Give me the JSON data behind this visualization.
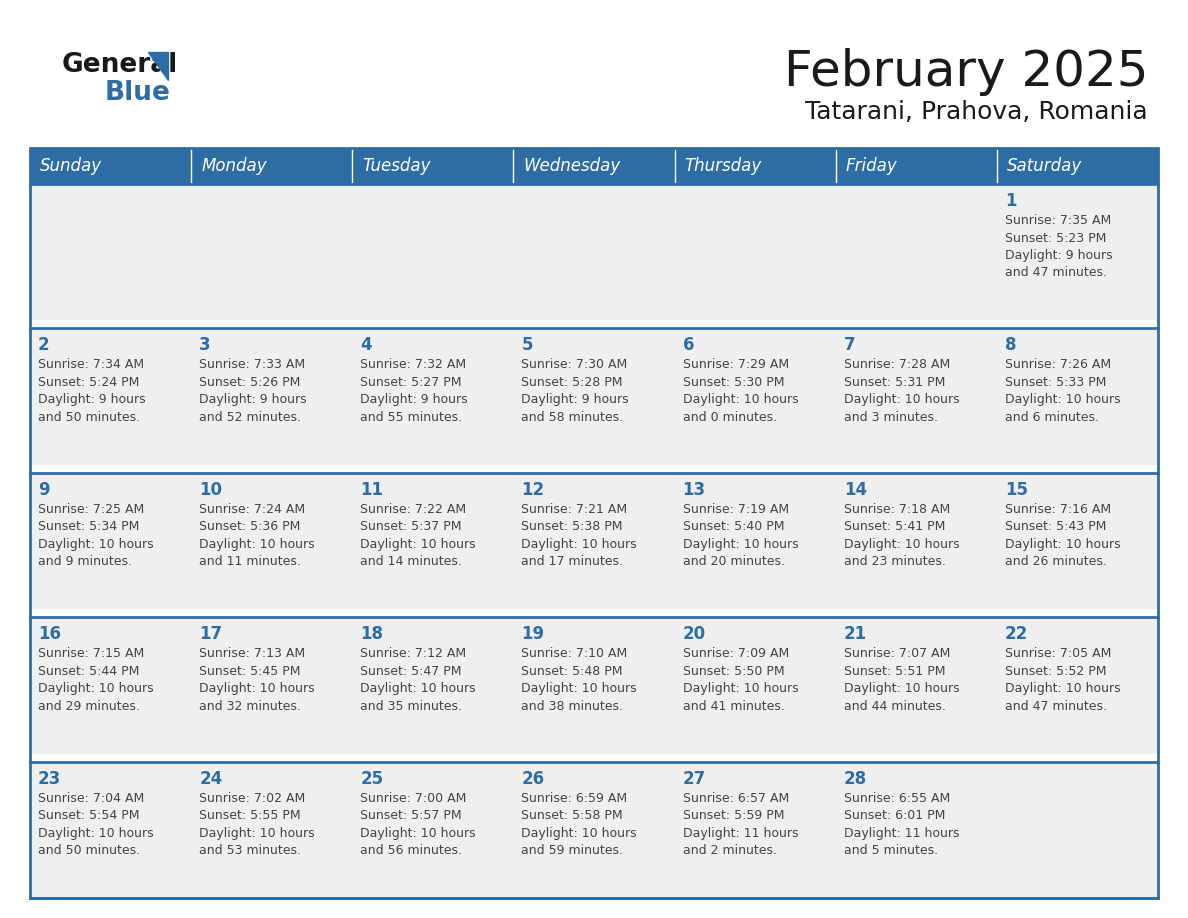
{
  "title": "February 2025",
  "subtitle": "Tatarani, Prahova, Romania",
  "days_of_week": [
    "Sunday",
    "Monday",
    "Tuesday",
    "Wednesday",
    "Thursday",
    "Friday",
    "Saturday"
  ],
  "header_bg": "#2E6DA4",
  "header_text": "#FFFFFF",
  "cell_bg": "#EFEFEF",
  "cell_bg_white": "#FFFFFF",
  "row_separator_color": "#2E6DA4",
  "day_number_color": "#2E6DA4",
  "cell_text_color": "#444444",
  "title_color": "#1a1a1a",
  "subtitle_color": "#1a1a1a",
  "logo_general_color": "#1a1a1a",
  "logo_blue_color": "#2E6DA4",
  "logo_triangle_color": "#2E6DA4",
  "calendar_data": [
    [
      {
        "day": null,
        "info": null
      },
      {
        "day": null,
        "info": null
      },
      {
        "day": null,
        "info": null
      },
      {
        "day": null,
        "info": null
      },
      {
        "day": null,
        "info": null
      },
      {
        "day": null,
        "info": null
      },
      {
        "day": 1,
        "info": "Sunrise: 7:35 AM\nSunset: 5:23 PM\nDaylight: 9 hours\nand 47 minutes."
      }
    ],
    [
      {
        "day": 2,
        "info": "Sunrise: 7:34 AM\nSunset: 5:24 PM\nDaylight: 9 hours\nand 50 minutes."
      },
      {
        "day": 3,
        "info": "Sunrise: 7:33 AM\nSunset: 5:26 PM\nDaylight: 9 hours\nand 52 minutes."
      },
      {
        "day": 4,
        "info": "Sunrise: 7:32 AM\nSunset: 5:27 PM\nDaylight: 9 hours\nand 55 minutes."
      },
      {
        "day": 5,
        "info": "Sunrise: 7:30 AM\nSunset: 5:28 PM\nDaylight: 9 hours\nand 58 minutes."
      },
      {
        "day": 6,
        "info": "Sunrise: 7:29 AM\nSunset: 5:30 PM\nDaylight: 10 hours\nand 0 minutes."
      },
      {
        "day": 7,
        "info": "Sunrise: 7:28 AM\nSunset: 5:31 PM\nDaylight: 10 hours\nand 3 minutes."
      },
      {
        "day": 8,
        "info": "Sunrise: 7:26 AM\nSunset: 5:33 PM\nDaylight: 10 hours\nand 6 minutes."
      }
    ],
    [
      {
        "day": 9,
        "info": "Sunrise: 7:25 AM\nSunset: 5:34 PM\nDaylight: 10 hours\nand 9 minutes."
      },
      {
        "day": 10,
        "info": "Sunrise: 7:24 AM\nSunset: 5:36 PM\nDaylight: 10 hours\nand 11 minutes."
      },
      {
        "day": 11,
        "info": "Sunrise: 7:22 AM\nSunset: 5:37 PM\nDaylight: 10 hours\nand 14 minutes."
      },
      {
        "day": 12,
        "info": "Sunrise: 7:21 AM\nSunset: 5:38 PM\nDaylight: 10 hours\nand 17 minutes."
      },
      {
        "day": 13,
        "info": "Sunrise: 7:19 AM\nSunset: 5:40 PM\nDaylight: 10 hours\nand 20 minutes."
      },
      {
        "day": 14,
        "info": "Sunrise: 7:18 AM\nSunset: 5:41 PM\nDaylight: 10 hours\nand 23 minutes."
      },
      {
        "day": 15,
        "info": "Sunrise: 7:16 AM\nSunset: 5:43 PM\nDaylight: 10 hours\nand 26 minutes."
      }
    ],
    [
      {
        "day": 16,
        "info": "Sunrise: 7:15 AM\nSunset: 5:44 PM\nDaylight: 10 hours\nand 29 minutes."
      },
      {
        "day": 17,
        "info": "Sunrise: 7:13 AM\nSunset: 5:45 PM\nDaylight: 10 hours\nand 32 minutes."
      },
      {
        "day": 18,
        "info": "Sunrise: 7:12 AM\nSunset: 5:47 PM\nDaylight: 10 hours\nand 35 minutes."
      },
      {
        "day": 19,
        "info": "Sunrise: 7:10 AM\nSunset: 5:48 PM\nDaylight: 10 hours\nand 38 minutes."
      },
      {
        "day": 20,
        "info": "Sunrise: 7:09 AM\nSunset: 5:50 PM\nDaylight: 10 hours\nand 41 minutes."
      },
      {
        "day": 21,
        "info": "Sunrise: 7:07 AM\nSunset: 5:51 PM\nDaylight: 10 hours\nand 44 minutes."
      },
      {
        "day": 22,
        "info": "Sunrise: 7:05 AM\nSunset: 5:52 PM\nDaylight: 10 hours\nand 47 minutes."
      }
    ],
    [
      {
        "day": 23,
        "info": "Sunrise: 7:04 AM\nSunset: 5:54 PM\nDaylight: 10 hours\nand 50 minutes."
      },
      {
        "day": 24,
        "info": "Sunrise: 7:02 AM\nSunset: 5:55 PM\nDaylight: 10 hours\nand 53 minutes."
      },
      {
        "day": 25,
        "info": "Sunrise: 7:00 AM\nSunset: 5:57 PM\nDaylight: 10 hours\nand 56 minutes."
      },
      {
        "day": 26,
        "info": "Sunrise: 6:59 AM\nSunset: 5:58 PM\nDaylight: 10 hours\nand 59 minutes."
      },
      {
        "day": 27,
        "info": "Sunrise: 6:57 AM\nSunset: 5:59 PM\nDaylight: 11 hours\nand 2 minutes."
      },
      {
        "day": 28,
        "info": "Sunrise: 6:55 AM\nSunset: 6:01 PM\nDaylight: 11 hours\nand 5 minutes."
      },
      {
        "day": null,
        "info": null
      }
    ]
  ]
}
